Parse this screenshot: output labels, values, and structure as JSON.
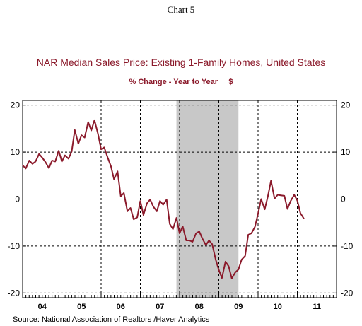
{
  "header": {
    "supertitle": "Chart 5",
    "title": "NAR Median Sales Price: Existing 1-Family Homes, United States",
    "subtitle": "% Change - Year to Year     $"
  },
  "source": "Source:  National Association of Realtors /Haver Analytics",
  "colors": {
    "line": "#8b1a2b",
    "recession": "#c8c8c8",
    "title": "#8b1a2b"
  },
  "chart_data": {
    "type": "line",
    "title": "NAR Median Sales Price: Existing 1-Family Homes, United States",
    "ylabel": "% Change - Year to Year",
    "units": "$",
    "ylim": [
      -21,
      21
    ],
    "yticks": [
      20,
      10,
      0,
      -10,
      -20
    ],
    "xlim": [
      2004.0,
      2012.0
    ],
    "xtick_labels": [
      {
        "x": 2004.5,
        "label": "04"
      },
      {
        "x": 2005.5,
        "label": "05"
      },
      {
        "x": 2006.5,
        "label": "06"
      },
      {
        "x": 2007.5,
        "label": "07"
      },
      {
        "x": 2008.5,
        "label": "08"
      },
      {
        "x": 2009.5,
        "label": "09"
      },
      {
        "x": 2010.5,
        "label": "10"
      },
      {
        "x": 2011.5,
        "label": "11"
      }
    ],
    "vgrid_x": [
      2005.0,
      2006.0,
      2007.0,
      2008.0,
      2009.0,
      2010.0,
      2011.0
    ],
    "hgrid_y": [
      20,
      10,
      -10,
      -20
    ],
    "zero_line": true,
    "recession": [
      2007.92,
      2009.5
    ],
    "series": [
      {
        "values": [
          [
            2004.0,
            7.2
          ],
          [
            2004.08,
            6.5
          ],
          [
            2004.17,
            8.2
          ],
          [
            2004.25,
            7.5
          ],
          [
            2004.33,
            8.0
          ],
          [
            2004.42,
            9.6
          ],
          [
            2004.5,
            8.8
          ],
          [
            2004.58,
            7.9
          ],
          [
            2004.67,
            6.6
          ],
          [
            2004.75,
            8.2
          ],
          [
            2004.83,
            8.0
          ],
          [
            2004.92,
            10.3
          ],
          [
            2005.0,
            8.0
          ],
          [
            2005.08,
            9.3
          ],
          [
            2005.17,
            8.6
          ],
          [
            2005.25,
            10.1
          ],
          [
            2005.33,
            14.7
          ],
          [
            2005.42,
            11.8
          ],
          [
            2005.5,
            13.6
          ],
          [
            2005.58,
            13.1
          ],
          [
            2005.67,
            16.4
          ],
          [
            2005.75,
            14.6
          ],
          [
            2005.83,
            16.8
          ],
          [
            2005.92,
            13.9
          ],
          [
            2006.0,
            10.6
          ],
          [
            2006.08,
            11.0
          ],
          [
            2006.17,
            8.8
          ],
          [
            2006.25,
            7.0
          ],
          [
            2006.33,
            4.2
          ],
          [
            2006.42,
            5.9
          ],
          [
            2006.5,
            0.6
          ],
          [
            2006.58,
            1.3
          ],
          [
            2006.67,
            -2.6
          ],
          [
            2006.75,
            -1.9
          ],
          [
            2006.83,
            -4.3
          ],
          [
            2006.92,
            -3.9
          ],
          [
            2007.0,
            -0.4
          ],
          [
            2007.08,
            -3.4
          ],
          [
            2007.17,
            -0.9
          ],
          [
            2007.25,
            -0.1
          ],
          [
            2007.33,
            -1.6
          ],
          [
            2007.42,
            -2.6
          ],
          [
            2007.5,
            -0.4
          ],
          [
            2007.58,
            -1.2
          ],
          [
            2007.67,
            -0.1
          ],
          [
            2007.75,
            -5.3
          ],
          [
            2007.83,
            -6.4
          ],
          [
            2007.92,
            -4.0
          ],
          [
            2008.0,
            -7.3
          ],
          [
            2008.08,
            -5.8
          ],
          [
            2008.17,
            -8.8
          ],
          [
            2008.25,
            -8.8
          ],
          [
            2008.33,
            -9.1
          ],
          [
            2008.42,
            -7.3
          ],
          [
            2008.5,
            -6.9
          ],
          [
            2008.58,
            -8.4
          ],
          [
            2008.67,
            -9.8
          ],
          [
            2008.75,
            -8.8
          ],
          [
            2008.83,
            -9.6
          ],
          [
            2008.92,
            -12.9
          ],
          [
            2009.0,
            -15.1
          ],
          [
            2009.08,
            -16.8
          ],
          [
            2009.17,
            -13.3
          ],
          [
            2009.25,
            -14.3
          ],
          [
            2009.33,
            -16.9
          ],
          [
            2009.42,
            -15.6
          ],
          [
            2009.5,
            -15.0
          ],
          [
            2009.58,
            -12.9
          ],
          [
            2009.67,
            -12.1
          ],
          [
            2009.75,
            -7.6
          ],
          [
            2009.83,
            -7.3
          ],
          [
            2009.92,
            -5.9
          ],
          [
            2010.0,
            -3.1
          ],
          [
            2010.08,
            0.0
          ],
          [
            2010.17,
            -2.2
          ],
          [
            2010.25,
            0.6
          ],
          [
            2010.33,
            3.9
          ],
          [
            2010.42,
            0.1
          ],
          [
            2010.5,
            0.9
          ],
          [
            2010.58,
            0.8
          ],
          [
            2010.67,
            0.7
          ],
          [
            2010.75,
            -2.1
          ],
          [
            2010.83,
            -0.4
          ],
          [
            2010.92,
            0.9
          ],
          [
            2011.0,
            -0.3
          ],
          [
            2011.08,
            -3.0
          ],
          [
            2011.17,
            -4.2
          ]
        ]
      }
    ]
  }
}
